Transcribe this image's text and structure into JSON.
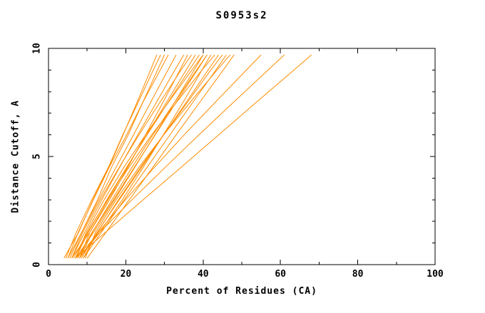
{
  "chart_data": {
    "type": "line",
    "title": "S0953s2",
    "xlabel": "Percent of Residues (CA)",
    "ylabel": "Distance Cutoff, A",
    "axes": {
      "xlim": [
        0,
        100
      ],
      "ylim": [
        0,
        10
      ],
      "xticks": [
        0,
        20,
        40,
        60,
        80,
        100
      ],
      "yticks": [
        0,
        5,
        10
      ],
      "x_minor_step": 10,
      "y_minor_step": 1,
      "grid": false,
      "legend": "none",
      "frame": "box with inward ticks on all four sides"
    },
    "style": {
      "line_color": "#ff8c00",
      "axis_color": "#000000",
      "background": "#ffffff"
    },
    "series": [
      {
        "points": [
          [
            4,
            0.3
          ],
          [
            7.8,
            1.5
          ],
          [
            11.5,
            3
          ],
          [
            15.6,
            4.5
          ],
          [
            19.3,
            6
          ],
          [
            22.9,
            7.5
          ],
          [
            26.4,
            9
          ],
          [
            28,
            9.7
          ]
        ]
      },
      {
        "points": [
          [
            4.5,
            0.3
          ],
          [
            7.2,
            1.5
          ],
          [
            11.2,
            3
          ],
          [
            15.5,
            4.5
          ],
          [
            19.2,
            6
          ],
          [
            23.2,
            7.5
          ],
          [
            27.1,
            9
          ],
          [
            29,
            9.7
          ]
        ]
      },
      {
        "points": [
          [
            5,
            0.3
          ],
          [
            8.6,
            1.5
          ],
          [
            12.7,
            3
          ],
          [
            16.3,
            4.5
          ],
          [
            20.6,
            6
          ],
          [
            24.4,
            7.5
          ],
          [
            28.2,
            9
          ],
          [
            30,
            9.7
          ]
        ]
      },
      {
        "points": [
          [
            5,
            0.3
          ],
          [
            7.7,
            1.5
          ],
          [
            11.6,
            3
          ],
          [
            15.7,
            4.5
          ],
          [
            20.2,
            6
          ],
          [
            24.4,
            7.5
          ],
          [
            28.9,
            9
          ],
          [
            31,
            9.7
          ]
        ]
      },
      {
        "points": [
          [
            5.5,
            0.3
          ],
          [
            8.6,
            1.5
          ],
          [
            13,
            3
          ],
          [
            17.5,
            4.5
          ],
          [
            22,
            6
          ],
          [
            26.4,
            7.5
          ],
          [
            30.9,
            9
          ],
          [
            33,
            9.7
          ]
        ]
      },
      {
        "points": [
          [
            6,
            0.3
          ],
          [
            9.4,
            1.5
          ],
          [
            13.8,
            3
          ],
          [
            18.4,
            4.5
          ],
          [
            23.1,
            6
          ],
          [
            27.9,
            7.5
          ],
          [
            32.7,
            9
          ],
          [
            35,
            9.7
          ]
        ]
      },
      {
        "points": [
          [
            6,
            0.3
          ],
          [
            10.7,
            1.5
          ],
          [
            15.8,
            3
          ],
          [
            20.5,
            4.5
          ],
          [
            25.1,
            6
          ],
          [
            29.6,
            7.5
          ],
          [
            34,
            9
          ],
          [
            36,
            9.7
          ]
        ]
      },
      {
        "points": [
          [
            6,
            0.3
          ],
          [
            8.9,
            1.5
          ],
          [
            13.4,
            3
          ],
          [
            18.3,
            4.5
          ],
          [
            23.4,
            6
          ],
          [
            28.8,
            7.5
          ],
          [
            34.3,
            9
          ],
          [
            37,
            9.7
          ]
        ]
      },
      {
        "points": [
          [
            6.5,
            0.3
          ],
          [
            10.1,
            1.5
          ],
          [
            15.2,
            3
          ],
          [
            20.3,
            4.5
          ],
          [
            25.4,
            6
          ],
          [
            30.5,
            7.5
          ],
          [
            35.6,
            9
          ],
          [
            38,
            9.7
          ]
        ]
      },
      {
        "points": [
          [
            7,
            0.3
          ],
          [
            10.3,
            1.5
          ],
          [
            15.1,
            3
          ],
          [
            20.2,
            4.5
          ],
          [
            25.5,
            6
          ],
          [
            30.9,
            7.5
          ],
          [
            36.4,
            9
          ],
          [
            39,
            9.7
          ]
        ]
      },
      {
        "points": [
          [
            7,
            0.3
          ],
          [
            11.7,
            1.5
          ],
          [
            17.1,
            3
          ],
          [
            22.3,
            4.5
          ],
          [
            27.5,
            6
          ],
          [
            32.6,
            7.5
          ],
          [
            37.7,
            9
          ],
          [
            40,
            9.7
          ]
        ]
      },
      {
        "points": [
          [
            7,
            0.3
          ],
          [
            9.8,
            1.5
          ],
          [
            14.4,
            3
          ],
          [
            19.5,
            4.5
          ],
          [
            25.1,
            6
          ],
          [
            31,
            7.5
          ],
          [
            37.1,
            9
          ],
          [
            40,
            9.7
          ]
        ]
      },
      {
        "points": [
          [
            7.5,
            0.3
          ],
          [
            11.3,
            1.5
          ],
          [
            16.8,
            3
          ],
          [
            22.2,
            4.5
          ],
          [
            27.6,
            6
          ],
          [
            33,
            7.5
          ],
          [
            38.5,
            9
          ],
          [
            41,
            9.7
          ]
        ]
      },
      {
        "points": [
          [
            8,
            0.3
          ],
          [
            11.4,
            1.5
          ],
          [
            16.4,
            3
          ],
          [
            21.6,
            4.5
          ],
          [
            27,
            6
          ],
          [
            32.6,
            7.5
          ],
          [
            38.3,
            9
          ],
          [
            41,
            9.7
          ]
        ]
      },
      {
        "points": [
          [
            8,
            0.3
          ],
          [
            13.3,
            1.5
          ],
          [
            19.1,
            3
          ],
          [
            24.5,
            4.5
          ],
          [
            29.7,
            6
          ],
          [
            34.8,
            7.5
          ],
          [
            39.7,
            9
          ],
          [
            42,
            9.7
          ]
        ]
      },
      {
        "points": [
          [
            8,
            0.3
          ],
          [
            10.7,
            1.5
          ],
          [
            15.4,
            3
          ],
          [
            20.8,
            4.5
          ],
          [
            26.7,
            6
          ],
          [
            33.1,
            7.5
          ],
          [
            39.7,
            9
          ],
          [
            43,
            9.7
          ]
        ]
      },
      {
        "points": [
          [
            8.5,
            0.3
          ],
          [
            12.6,
            1.5
          ],
          [
            18.3,
            3
          ],
          [
            24.1,
            4.5
          ],
          [
            29.8,
            6
          ],
          [
            35.6,
            7.5
          ],
          [
            41.3,
            9
          ],
          [
            44,
            9.7
          ]
        ]
      },
      {
        "points": [
          [
            9,
            0.3
          ],
          [
            12.7,
            1.5
          ],
          [
            18.1,
            3
          ],
          [
            23.8,
            4.5
          ],
          [
            29.8,
            6
          ],
          [
            35.9,
            7.5
          ],
          [
            42,
            9
          ],
          [
            45,
            9.7
          ]
        ]
      },
      {
        "points": [
          [
            9,
            0.3
          ],
          [
            13.7,
            1.5
          ],
          [
            19.6,
            3
          ],
          [
            25.5,
            4.5
          ],
          [
            31.4,
            6
          ],
          [
            37.3,
            7.5
          ],
          [
            43.3,
            9
          ],
          [
            46,
            9.7
          ]
        ]
      },
      {
        "points": [
          [
            9.5,
            0.3
          ],
          [
            12.2,
            1.5
          ],
          [
            17.5,
            3
          ],
          [
            23.4,
            4.5
          ],
          [
            29.8,
            6
          ],
          [
            36.6,
            7.5
          ],
          [
            43.6,
            9
          ],
          [
            47,
            9.7
          ]
        ]
      },
      {
        "points": [
          [
            10,
            0.3
          ],
          [
            14.9,
            1.5
          ],
          [
            20.9,
            3
          ],
          [
            27,
            4.5
          ],
          [
            33,
            6
          ],
          [
            39.1,
            7.5
          ],
          [
            45.2,
            9
          ],
          [
            48,
            9.7
          ]
        ]
      },
      {
        "points": [
          [
            8,
            0.3
          ],
          [
            12.9,
            1.5
          ],
          [
            19.9,
            3
          ],
          [
            27.4,
            4.5
          ],
          [
            35.1,
            6
          ],
          [
            43.1,
            7.5
          ],
          [
            51.2,
            9
          ],
          [
            55,
            9.7
          ]
        ]
      },
      {
        "points": [
          [
            7,
            0.3
          ],
          [
            13.3,
            1.5
          ],
          [
            21.6,
            3
          ],
          [
            30.2,
            4.5
          ],
          [
            38.9,
            6
          ],
          [
            47.8,
            7.5
          ],
          [
            56.8,
            9
          ],
          [
            61,
            9.7
          ]
        ]
      },
      {
        "points": [
          [
            7,
            0.3
          ],
          [
            14.8,
            1.5
          ],
          [
            24.5,
            3
          ],
          [
            34.3,
            4.5
          ],
          [
            44,
            6
          ],
          [
            53.7,
            7.5
          ],
          [
            63.5,
            9
          ],
          [
            68,
            9.7
          ]
        ]
      }
    ]
  }
}
